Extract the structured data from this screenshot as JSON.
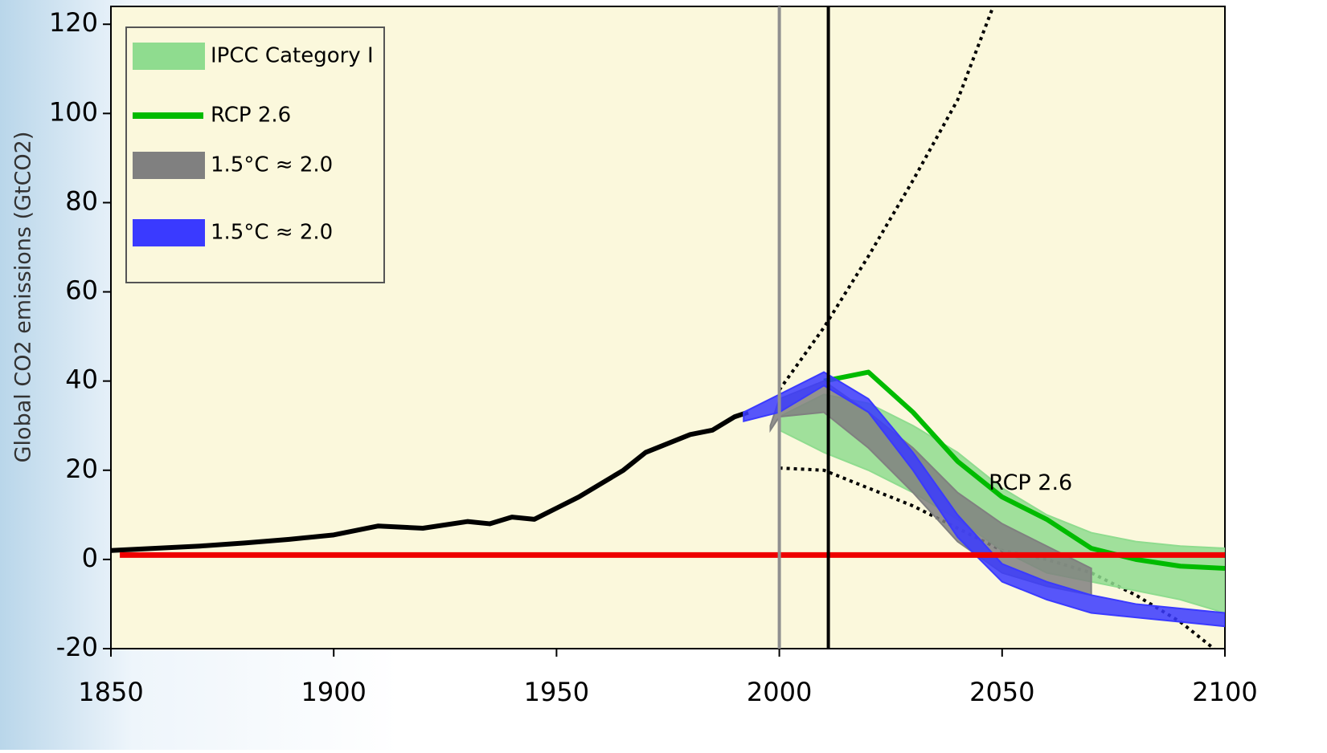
{
  "chart_data": {
    "type": "line",
    "ylabel": "Global CO2 emissions (GtCO2)",
    "xlim": [
      1850,
      2100
    ],
    "ylim": [
      -20,
      124
    ],
    "xticks": [
      1850,
      1900,
      1950,
      2000,
      2050,
      2100
    ],
    "yticks": [
      -20,
      0,
      20,
      40,
      60,
      80,
      100,
      120
    ],
    "legend": "upper left",
    "series": [
      {
        "name": "IPCC Category I",
        "color": "#8fdc8f",
        "kind": "band",
        "x": [
          2000,
          2010,
          2020,
          2030,
          2040,
          2050,
          2060,
          2070,
          2080,
          2090,
          2100
        ],
        "upper": [
          32,
          37,
          35,
          30,
          24,
          16,
          10,
          6,
          4,
          3,
          2.5
        ],
        "lower": [
          29,
          24,
          20,
          15,
          9,
          2,
          -3,
          -5,
          -7,
          -9,
          -12
        ]
      },
      {
        "name": "RCP 2.6",
        "color": "#00bb00",
        "kind": "line",
        "width": 6,
        "x": [
          2010,
          2020,
          2030,
          2040,
          2050,
          2060,
          2070,
          2080,
          2090,
          2100
        ],
        "values": [
          40,
          42,
          33,
          22,
          14,
          9,
          2.5,
          0,
          -1.5,
          -2
        ]
      },
      {
        "name": "1.5°C ≈ 2.0",
        "color": "#808080",
        "kind": "band",
        "x": [
          1998,
          2000,
          2010,
          2020,
          2030,
          2040,
          2050,
          2060,
          2070
        ],
        "upper": [
          30,
          36,
          40,
          33,
          25,
          15,
          8,
          3,
          -2
        ],
        "lower": [
          29,
          32,
          33,
          25,
          15,
          4,
          -3,
          -6,
          -8
        ]
      },
      {
        "name": "1.5°C ≈ 2.0",
        "color": "#3a3aff",
        "kind": "band",
        "x": [
          1992,
          2000,
          2010,
          2020,
          2030,
          2040,
          2050,
          2060,
          2070,
          2080,
          2090,
          2100
        ],
        "upper": [
          33,
          37,
          42,
          36,
          24,
          10,
          -1,
          -5,
          -8,
          -10,
          -11,
          -12
        ],
        "lower": [
          31,
          33,
          39,
          33,
          20,
          5,
          -5,
          -9,
          -12,
          -13,
          -14,
          -15
        ]
      }
    ],
    "lines": [
      {
        "color": "#000000",
        "width": 6,
        "dash": "none",
        "x": [
          1850,
          1860,
          1870,
          1880,
          1890,
          1900,
          1910,
          1920,
          1930,
          1935,
          1940,
          1945,
          1950,
          1955,
          1960,
          1965,
          1970,
          1975,
          1980,
          1985,
          1990,
          1993
        ],
        "values": [
          2,
          2.5,
          3,
          3.7,
          4.5,
          5.5,
          7.5,
          7,
          8.5,
          8,
          9.5,
          9,
          11.5,
          14,
          17,
          20,
          24,
          26,
          28,
          29,
          32,
          33
        ]
      },
      {
        "color": "#000000",
        "width": 4,
        "dash": "4 5",
        "x": [
          2000,
          2010,
          2020,
          2030,
          2040,
          2048
        ],
        "values": [
          38,
          52,
          68,
          85,
          103,
          124
        ]
      },
      {
        "color": "#000000",
        "width": 4,
        "dash": "4 5",
        "x": [
          2000,
          2010,
          2020,
          2030,
          2040,
          2050,
          2060,
          2070,
          2080,
          2090,
          2100
        ],
        "values": [
          20.5,
          20,
          16,
          12,
          7,
          2,
          0,
          -3,
          -8,
          -14,
          -22
        ]
      },
      {
        "color": "#ee0000",
        "width": 7,
        "dash": "none",
        "x": [
          1852,
          2100
        ],
        "values": [
          1,
          1
        ]
      }
    ],
    "vlines": [
      {
        "x": 2000,
        "color": "#909090"
      },
      {
        "x": 2011,
        "color": "#000000"
      }
    ],
    "annotations": [
      {
        "text": "RCP 2.6",
        "x": 2047,
        "y": 17
      }
    ]
  }
}
